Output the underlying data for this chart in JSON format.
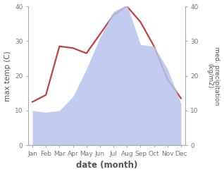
{
  "months": [
    "Jan",
    "Feb",
    "Mar",
    "Apr",
    "May",
    "Jun",
    "Jul",
    "Aug",
    "Sep",
    "Oct",
    "Nov",
    "Dec"
  ],
  "month_indices": [
    0,
    1,
    2,
    3,
    4,
    5,
    6,
    7,
    8,
    9,
    10,
    11
  ],
  "temperature": [
    12.5,
    14.5,
    28.5,
    28.0,
    26.5,
    32.0,
    37.5,
    40.0,
    35.5,
    28.5,
    19.0,
    13.5
  ],
  "precipitation": [
    10.0,
    9.5,
    10.0,
    14.0,
    22.0,
    31.0,
    38.5,
    40.5,
    29.0,
    28.5,
    22.0,
    12.0
  ],
  "temp_color": "#c44040",
  "precip_color": "#b8c4ee",
  "precip_alpha": 0.85,
  "ylim_left": [
    0,
    40
  ],
  "ylim_right": [
    0,
    40
  ],
  "xlabel": "date (month)",
  "ylabel_left": "max temp (C)",
  "ylabel_right": "med. precipitation\n(kg/m2)",
  "temp_linewidth": 1.6,
  "label_color": "#555555",
  "tick_color": "#777777",
  "spine_color": "#aaaaaa",
  "background_color": "#ffffff",
  "ylabel_left_fontsize": 7.5,
  "ylabel_right_fontsize": 6.5,
  "xlabel_fontsize": 8.5,
  "tick_fontsize": 6.5
}
